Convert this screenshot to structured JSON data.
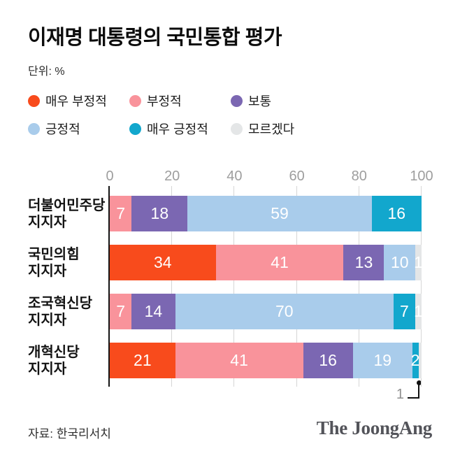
{
  "title": "이재명 대통령의 국민통합 평가",
  "unit_label": "단위: %",
  "legend": [
    {
      "label": "매우 부정적",
      "color": "#f84b1c"
    },
    {
      "label": "부정적",
      "color": "#f9939b"
    },
    {
      "label": "보통",
      "color": "#7b67b2"
    },
    {
      "label": "긍정적",
      "color": "#a9cceb"
    },
    {
      "label": "매우 긍정적",
      "color": "#12a7cd"
    },
    {
      "label": "모르겠다",
      "color": "#e4e6e7"
    }
  ],
  "chart_data": {
    "type": "bar",
    "orientation": "horizontal",
    "stacked": true,
    "title": "이재명 대통령의 국민통합 평가",
    "xlabel": "",
    "ylabel": "",
    "xlim": [
      0,
      100
    ],
    "x_ticks": [
      0,
      20,
      40,
      60,
      80,
      100
    ],
    "grid": "vertical",
    "categories": [
      "더불어민주당\n지지자",
      "국민의힘\n지지자",
      "조국혁신당\n지지자",
      "개혁신당\n지지자"
    ],
    "series": [
      {
        "name": "매우 부정적",
        "values": [
          0,
          34,
          0,
          21
        ]
      },
      {
        "name": "부정적",
        "values": [
          7,
          41,
          7,
          41
        ]
      },
      {
        "name": "보통",
        "values": [
          18,
          13,
          14,
          16
        ]
      },
      {
        "name": "긍정적",
        "values": [
          59,
          10,
          70,
          19
        ]
      },
      {
        "name": "매우 긍정적",
        "values": [
          16,
          0,
          7,
          2
        ]
      },
      {
        "name": "모르겠다",
        "values": [
          0,
          1,
          1,
          1
        ]
      }
    ],
    "callout": {
      "category_index": 3,
      "series_index": 5,
      "text": "1"
    }
  },
  "source": "자료: 한국리서치",
  "logo": "The JoongAng",
  "colors": {
    "axis": "#151515",
    "gridline": "#d6d6d6",
    "tick_text": "#9e9e9e",
    "bar_value_text": "#ffffff",
    "callout_text": "#8f8f8f"
  }
}
